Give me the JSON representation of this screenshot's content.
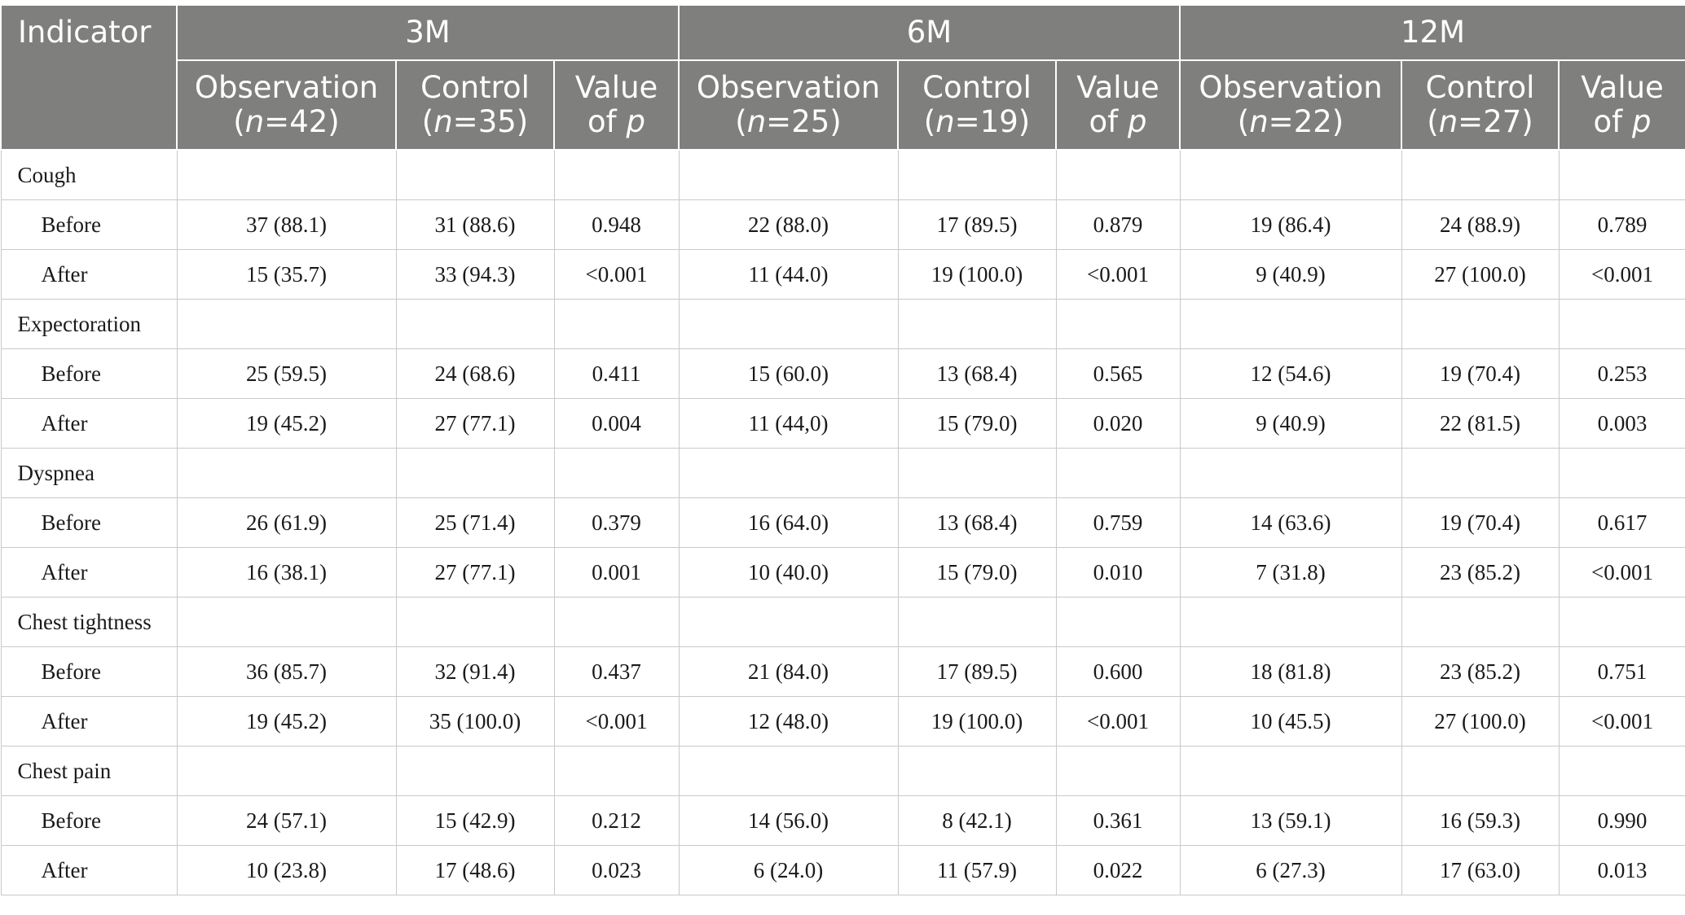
{
  "header": {
    "indicator": "Indicator",
    "periods": [
      "3M",
      "6M",
      "12M"
    ],
    "obs": {
      "label": "Observation",
      "n": [
        "42",
        "25",
        "22"
      ]
    },
    "ctrl": {
      "label": "Control",
      "n": [
        "35",
        "19",
        "27"
      ]
    },
    "pval": {
      "line1": "Value",
      "of": "of",
      "p": "p"
    },
    "n_prefix": "(",
    "n_italic": "n",
    "n_eq": "=",
    "n_suffix": ")"
  },
  "sections": [
    {
      "name": "Cough",
      "rows": [
        {
          "label": "Before",
          "cells": [
            "37 (88.1)",
            "31 (88.6)",
            "0.948",
            "22 (88.0)",
            "17 (89.5)",
            "0.879",
            "19 (86.4)",
            "24 (88.9)",
            "0.789"
          ]
        },
        {
          "label": "After",
          "cells": [
            "15 (35.7)",
            "33 (94.3)",
            "<0.001",
            "11 (44.0)",
            "19 (100.0)",
            "<0.001",
            "9 (40.9)",
            "27 (100.0)",
            "<0.001"
          ]
        }
      ]
    },
    {
      "name": "Expectoration",
      "rows": [
        {
          "label": "Before",
          "cells": [
            "25 (59.5)",
            "24 (68.6)",
            "0.411",
            "15 (60.0)",
            "13 (68.4)",
            "0.565",
            "12 (54.6)",
            "19 (70.4)",
            "0.253"
          ]
        },
        {
          "label": "After",
          "cells": [
            "19 (45.2)",
            "27 (77.1)",
            "0.004",
            "11 (44,0)",
            "15 (79.0)",
            "0.020",
            "9 (40.9)",
            "22 (81.5)",
            "0.003"
          ]
        }
      ]
    },
    {
      "name": "Dyspnea",
      "rows": [
        {
          "label": "Before",
          "cells": [
            "26 (61.9)",
            "25 (71.4)",
            "0.379",
            "16 (64.0)",
            "13 (68.4)",
            "0.759",
            "14 (63.6)",
            "19 (70.4)",
            "0.617"
          ]
        },
        {
          "label": "After",
          "cells": [
            "16 (38.1)",
            "27 (77.1)",
            "0.001",
            "10 (40.0)",
            "15 (79.0)",
            "0.010",
            "7 (31.8)",
            "23 (85.2)",
            "<0.001"
          ]
        }
      ]
    },
    {
      "name": "Chest tightness",
      "rows": [
        {
          "label": "Before",
          "cells": [
            "36 (85.7)",
            "32 (91.4)",
            "0.437",
            "21 (84.0)",
            "17 (89.5)",
            "0.600",
            "18 (81.8)",
            "23 (85.2)",
            "0.751"
          ]
        },
        {
          "label": "After",
          "cells": [
            "19 (45.2)",
            "35 (100.0)",
            "<0.001",
            "12 (48.0)",
            "19 (100.0)",
            "<0.001",
            "10 (45.5)",
            "27 (100.0)",
            "<0.001"
          ]
        }
      ]
    },
    {
      "name": "Chest pain",
      "rows": [
        {
          "label": "Before",
          "cells": [
            "24 (57.1)",
            "15 (42.9)",
            "0.212",
            "14 (56.0)",
            "8 (42.1)",
            "0.361",
            "13 (59.1)",
            "16 (59.3)",
            "0.990"
          ]
        },
        {
          "label": "After",
          "cells": [
            "10 (23.8)",
            "17 (48.6)",
            "0.023",
            "6 (24.0)",
            "11 (57.9)",
            "0.022",
            "6 (27.3)",
            "17 (63.0)",
            "0.013"
          ]
        }
      ]
    }
  ]
}
